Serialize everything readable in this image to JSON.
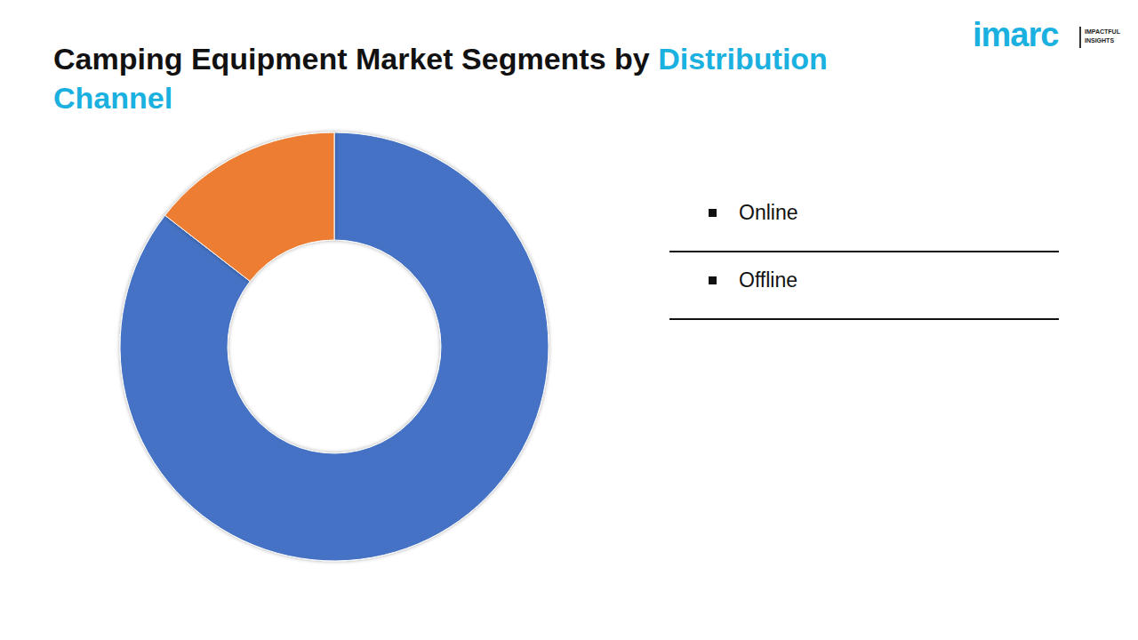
{
  "chart_data": {
    "type": "pie",
    "title": "Camping Equipment Market Segments by Distribution Channel",
    "categories": [
      "Online",
      "Offline"
    ],
    "values": [
      85.5,
      14.5
    ],
    "colors": [
      "#4472c4",
      "#ed7d31"
    ],
    "legend": "right",
    "data_labels": false,
    "annotations": [
      "imarc",
      "IMPACTFUL",
      "INSIGHTS"
    ]
  }
}
